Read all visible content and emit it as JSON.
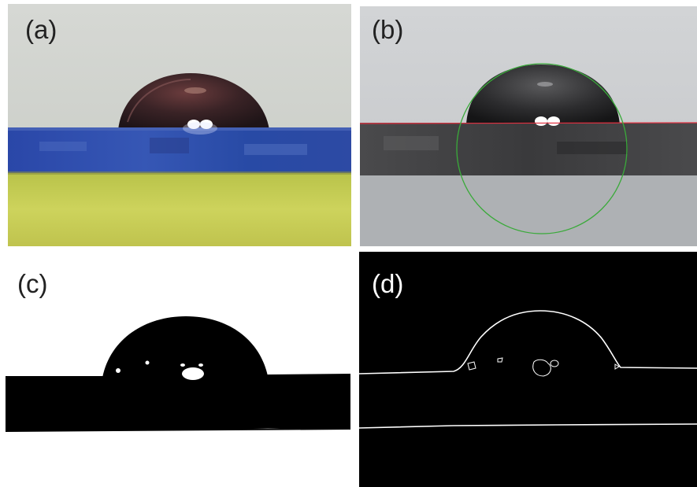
{
  "panels": [
    {
      "id": "a",
      "label": "(a)"
    },
    {
      "id": "b",
      "label": "(b)"
    },
    {
      "id": "c",
      "label": "(c)"
    },
    {
      "id": "d",
      "label": "(d)"
    }
  ],
  "colors": {
    "substrate_blue": "#2c45a0",
    "background_yellow_green": "#c9cf57",
    "backdrop_light": "#cfd3d1",
    "fitted_circle": "#3aaa3a",
    "baseline_red": "#e03040",
    "binary_black": "#000000",
    "edge_white": "#ffffff"
  }
}
